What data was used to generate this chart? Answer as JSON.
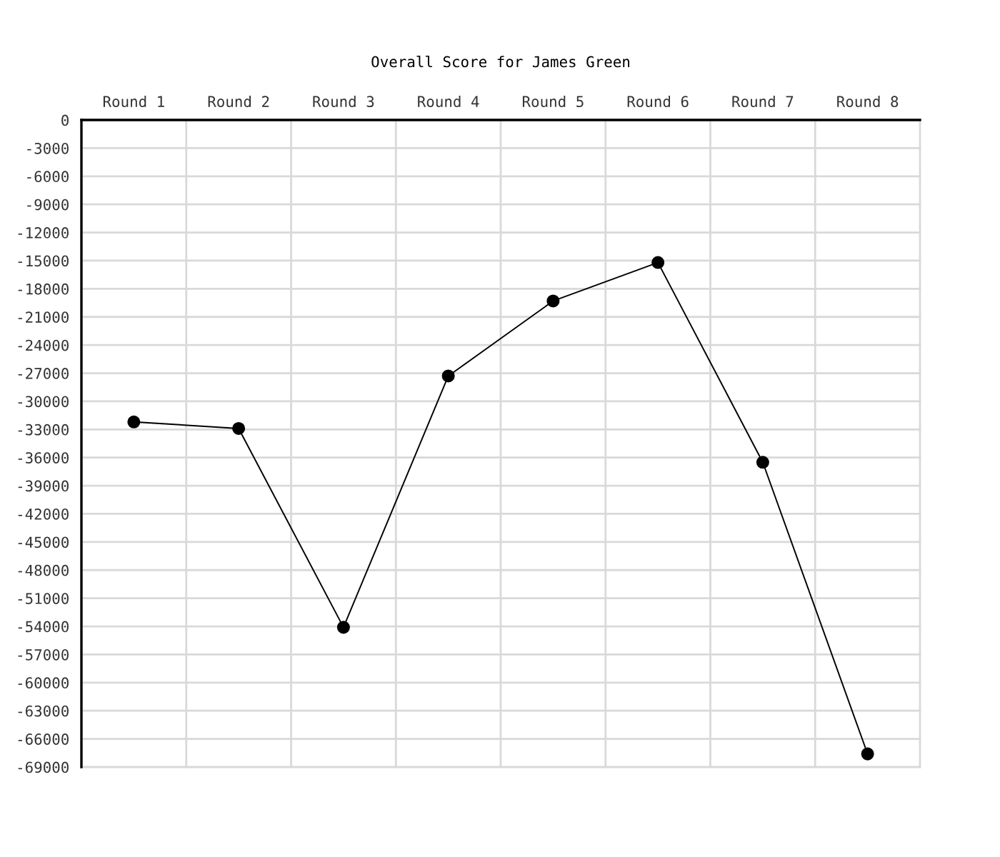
{
  "chart_data": {
    "type": "line",
    "title": "Overall Score for James Green",
    "categories": [
      "Round 1",
      "Round 2",
      "Round 3",
      "Round 4",
      "Round 5",
      "Round 6",
      "Round 7",
      "Round 8"
    ],
    "series": [
      {
        "color": "#000000",
        "values": [
          -32200,
          -32900,
          -54100,
          -27300,
          -19300,
          -15200,
          -36500,
          -67600
        ]
      }
    ],
    "ylim": [
      -69000,
      0
    ],
    "yticks": [
      0,
      -3000,
      -6000,
      -9000,
      -12000,
      -15000,
      -18000,
      -21000,
      -24000,
      -27000,
      -30000,
      -33000,
      -36000,
      -39000,
      -42000,
      -45000,
      -48000,
      -51000,
      -54000,
      -57000,
      -60000,
      -63000,
      -66000,
      -69000
    ],
    "grid": true,
    "marker": "circle",
    "line_style": "solid"
  }
}
